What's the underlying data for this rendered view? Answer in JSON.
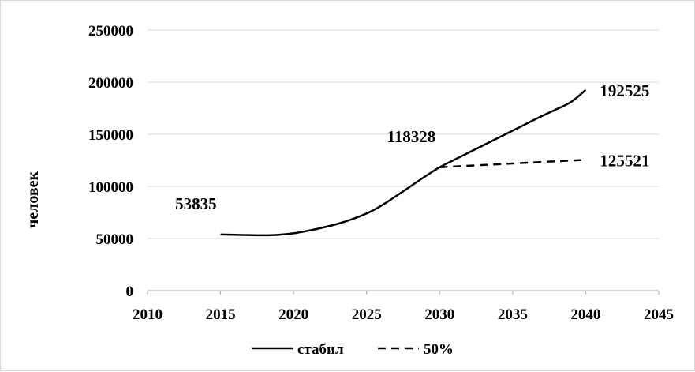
{
  "chart_data": {
    "type": "line",
    "title": "",
    "xlabel": "",
    "ylabel": "человек",
    "xlim": [
      2010,
      2045
    ],
    "ylim": [
      0,
      250000
    ],
    "x_ticks": [
      "2010",
      "2015",
      "2020",
      "2025",
      "2030",
      "2035",
      "2040",
      "2045"
    ],
    "y_ticks": [
      "0",
      "50000",
      "100000",
      "150000",
      "200000",
      "250000"
    ],
    "grid": "horizontal",
    "legend_position": "bottom",
    "series": [
      {
        "name": "стабил",
        "style": "solid",
        "color": "#000000",
        "points": [
          [
            2015,
            53835
          ],
          [
            2016,
            53600
          ],
          [
            2017,
            53300
          ],
          [
            2018,
            53100
          ],
          [
            2019,
            53600
          ],
          [
            2020,
            55000
          ],
          [
            2021,
            57500
          ],
          [
            2022,
            60500
          ],
          [
            2023,
            64000
          ],
          [
            2024,
            68500
          ],
          [
            2025,
            74000
          ],
          [
            2026,
            81500
          ],
          [
            2027,
            90500
          ],
          [
            2028,
            100000
          ],
          [
            2029,
            109500
          ],
          [
            2030,
            118328
          ],
          [
            2031,
            125500
          ],
          [
            2032,
            132500
          ],
          [
            2033,
            139500
          ],
          [
            2034,
            146500
          ],
          [
            2035,
            153500
          ],
          [
            2036,
            160500
          ],
          [
            2037,
            167500
          ],
          [
            2038,
            174000
          ],
          [
            2039,
            181000
          ],
          [
            2040,
            192525
          ]
        ]
      },
      {
        "name": "50%",
        "style": "dashed",
        "color": "#000000",
        "points": [
          [
            2030,
            118328
          ],
          [
            2035,
            122000
          ],
          [
            2040,
            125521
          ]
        ]
      }
    ],
    "data_labels": [
      {
        "text": "53835",
        "x": 2015,
        "y": 53835,
        "placement": "above-left"
      },
      {
        "text": "118328",
        "x": 2030,
        "y": 118328,
        "placement": "above-left"
      },
      {
        "text": "192525",
        "x": 2040,
        "y": 192525,
        "placement": "right"
      },
      {
        "text": "125521",
        "x": 2040,
        "y": 125521,
        "placement": "right"
      }
    ]
  }
}
